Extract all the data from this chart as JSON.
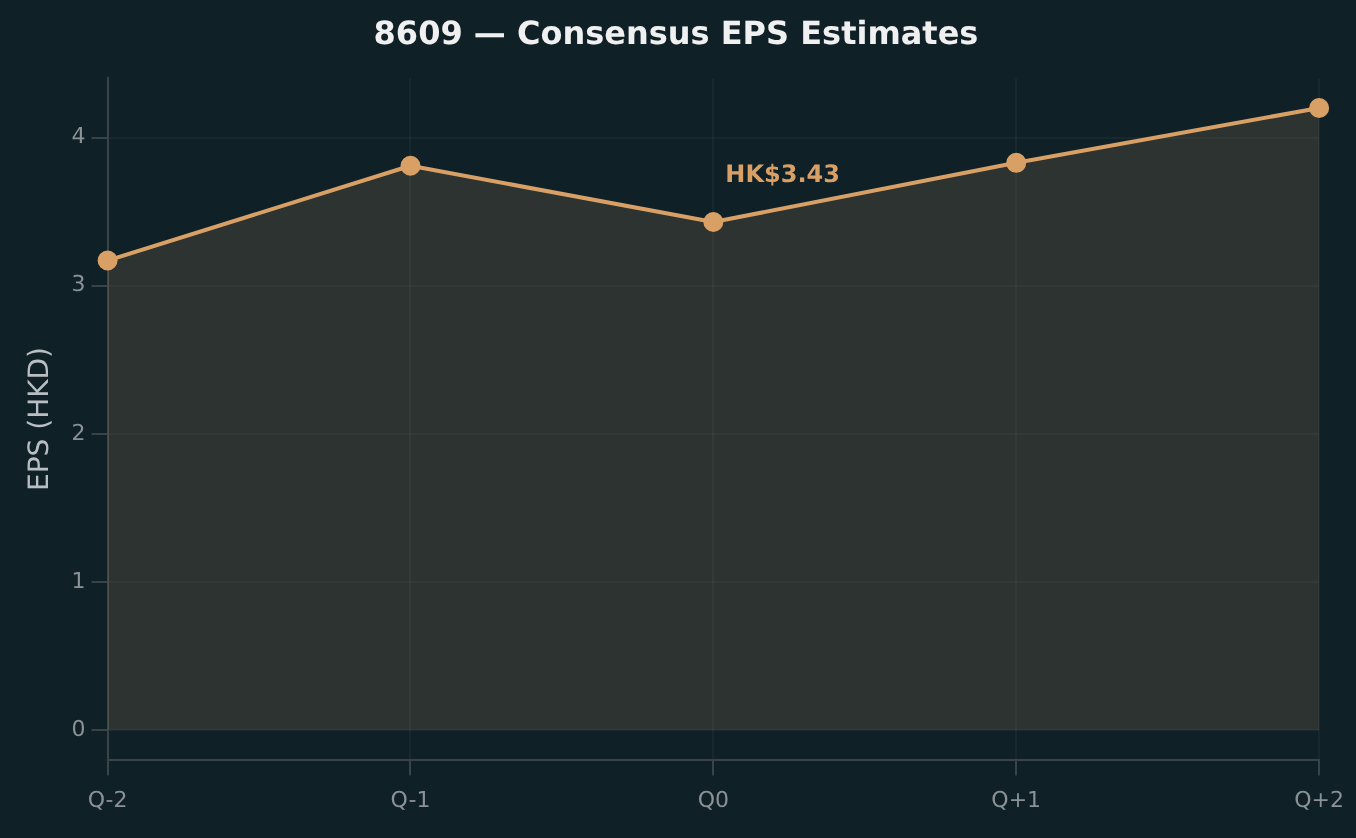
{
  "chart_data": {
    "type": "area",
    "title": "8609 — Consensus EPS Estimates",
    "ylabel": "EPS (HKD)",
    "categories": [
      "Q-2",
      "Q-1",
      "Q0",
      "Q+1",
      "Q+2"
    ],
    "series": [
      {
        "color": "#d9a066",
        "values": [
          3.17,
          3.81,
          3.43,
          3.83,
          4.2
        ]
      }
    ],
    "ylim": [
      -0.2,
      4.4
    ],
    "yticks": [
      0,
      1,
      2,
      3,
      4
    ],
    "grid": true,
    "legend": false,
    "marker": "circle",
    "line_style": "solid",
    "annotations": [
      {
        "text": "HK$3.43",
        "x": "Q0",
        "y": 3.43
      }
    ]
  }
}
